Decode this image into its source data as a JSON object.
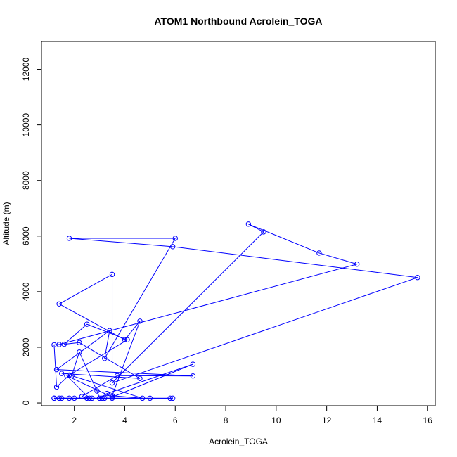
{
  "chart_data": {
    "type": "line",
    "title": "ATOM1 Northbound Acrolein_TOGA",
    "xlabel": "Acrolein_TOGA",
    "ylabel": "Altitude (m)",
    "xlim": [
      0.7,
      16.3
    ],
    "ylim": [
      -100,
      13000
    ],
    "x_ticks": [
      2,
      4,
      6,
      8,
      10,
      12,
      14,
      16
    ],
    "y_ticks": [
      0,
      2000,
      4000,
      6000,
      8000,
      10000,
      12000
    ],
    "series_color": "#0000ff",
    "markers": "open-circle",
    "legend": "none",
    "grid": false,
    "series": [
      {
        "x": [
          1.2,
          1.4,
          1.8,
          2.7,
          3.2,
          5.0,
          5.8,
          5.9,
          3.1,
          2.0,
          1.2,
          1.5,
          2.5,
          3.5,
          3.5,
          1.4,
          4.0,
          4.6,
          3.5,
          4.7,
          1.9,
          2.2,
          2.9,
          3.0,
          3.3,
          6.7,
          3.5,
          1.7,
          2.6,
          2.3,
          3.7,
          6.7,
          1.3,
          3.4,
          3.2,
          6.0,
          1.8,
          5.9,
          15.6,
          3.5,
          9.5,
          8.9,
          11.7,
          13.2,
          1.4,
          1.2,
          1.3,
          1.8,
          4.1,
          2.5,
          1.6,
          2.2,
          4.6,
          1.5
        ],
        "y": [
          170,
          170,
          170,
          170,
          170,
          170,
          170,
          170,
          170,
          170,
          170,
          170,
          170,
          170,
          4620,
          3560,
          2270,
          2940,
          260,
          170,
          980,
          1830,
          430,
          170,
          340,
          1390,
          210,
          980,
          170,
          230,
          980,
          970,
          1200,
          2600,
          1600,
          5920,
          5920,
          5620,
          4510,
          720,
          6150,
          6430,
          5390,
          4990,
          2100,
          2090,
          570,
          1000,
          2270,
          2830,
          2110,
          2170,
          880,
          1060
        ]
      }
    ]
  }
}
